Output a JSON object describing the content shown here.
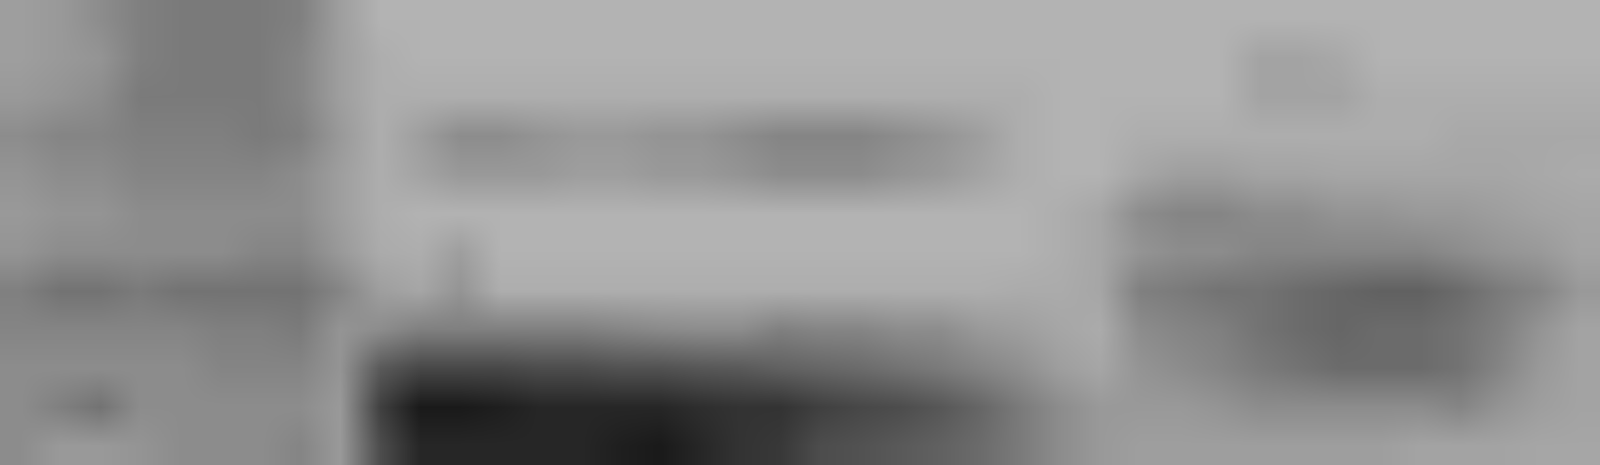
{
  "chart_data": {
    "type": "heatmap",
    "tick_labels": false,
    "zlim": [
      0,
      100
    ],
    "cells": [
      [
        45,
        40,
        40,
        42,
        45,
        45,
        45,
        48,
        40,
        70,
        85,
        85,
        85,
        85,
        85,
        88,
        90,
        85,
        80,
        78,
        70,
        68,
        65,
        62,
        58,
        52,
        45,
        40,
        38,
        38,
        38,
        38,
        38,
        38,
        38,
        36,
        36,
        36,
        35,
        35
      ],
      [
        45,
        50,
        55,
        45,
        45,
        45,
        45,
        45,
        40,
        75,
        90,
        90,
        88,
        85,
        85,
        85,
        85,
        82,
        80,
        80,
        75,
        72,
        70,
        66,
        60,
        52,
        45,
        40,
        40,
        40,
        42,
        45,
        45,
        45,
        45,
        45,
        48,
        42,
        38,
        36
      ],
      [
        45,
        45,
        45,
        45,
        45,
        48,
        48,
        48,
        42,
        65,
        72,
        72,
        72,
        70,
        70,
        68,
        68,
        66,
        65,
        62,
        60,
        58,
        55,
        52,
        48,
        44,
        38,
        35,
        42,
        45,
        48,
        52,
        55,
        58,
        58,
        58,
        55,
        48,
        40,
        36
      ],
      [
        48,
        48,
        48,
        48,
        48,
        50,
        50,
        52,
        42,
        45,
        50,
        50,
        50,
        50,
        50,
        48,
        46,
        45,
        45,
        50,
        48,
        48,
        45,
        45,
        40,
        38,
        35,
        33,
        45,
        48,
        50,
        55,
        58,
        60,
        58,
        58,
        55,
        50,
        42,
        36
      ],
      [
        50,
        55,
        55,
        52,
        55,
        55,
        55,
        55,
        48,
        38,
        35,
        42,
        32,
        32,
        32,
        32,
        32,
        32,
        32,
        32,
        32,
        32,
        32,
        32,
        32,
        33,
        33,
        35,
        50,
        52,
        55,
        55,
        58,
        60,
        62,
        62,
        58,
        52,
        48,
        40
      ],
      [
        42,
        45,
        45,
        45,
        45,
        45,
        48,
        48,
        40,
        33,
        32,
        38,
        30,
        30,
        30,
        30,
        30,
        30,
        30,
        30,
        30,
        30,
        30,
        30,
        30,
        30,
        32,
        35,
        42,
        45,
        45,
        48,
        48,
        48,
        48,
        48,
        45,
        42,
        40,
        36
      ],
      [
        40,
        42,
        42,
        45,
        45,
        45,
        45,
        45,
        38,
        32,
        30,
        30,
        30,
        30,
        30,
        30,
        30,
        30,
        30,
        30,
        30,
        30,
        30,
        30,
        30,
        30,
        32,
        35,
        45,
        48,
        48,
        45,
        45,
        42,
        42,
        40,
        40,
        38,
        36,
        35
      ],
      [
        42,
        45,
        45,
        48,
        48,
        48,
        48,
        45,
        38,
        32,
        36,
        40,
        40,
        40,
        38,
        38,
        40,
        40,
        42,
        45,
        45,
        45,
        42,
        40,
        36,
        32,
        30,
        30,
        35,
        38,
        38,
        36,
        36,
        35,
        35,
        35,
        35,
        35,
        34,
        33
      ],
      [
        45,
        48,
        48,
        50,
        50,
        50,
        52,
        50,
        40,
        32,
        38,
        45,
        45,
        42,
        40,
        40,
        42,
        42,
        45,
        48,
        48,
        48,
        45,
        42,
        38,
        32,
        30,
        30,
        32,
        32,
        32,
        32,
        32,
        32,
        32,
        32,
        34,
        34,
        34,
        34
      ],
      [
        40,
        42,
        45,
        52,
        52,
        52,
        52,
        48,
        38,
        32,
        32,
        32,
        32,
        32,
        32,
        32,
        32,
        32,
        32,
        32,
        32,
        32,
        32,
        32,
        32,
        32,
        30,
        30,
        30,
        30,
        30,
        36,
        36,
        36,
        32,
        32,
        32,
        32,
        32,
        32
      ],
      [
        38,
        40,
        42,
        50,
        52,
        52,
        52,
        48,
        38,
        32,
        30,
        30,
        30,
        30,
        30,
        30,
        30,
        30,
        30,
        30,
        30,
        30,
        30,
        30,
        30,
        30,
        30,
        30,
        30,
        30,
        30,
        36,
        36,
        34,
        30,
        30,
        30,
        30,
        30,
        30
      ],
      [
        38,
        40,
        45,
        50,
        52,
        52,
        52,
        50,
        38,
        30,
        30,
        30,
        30,
        30,
        30,
        30,
        30,
        30,
        30,
        30,
        30,
        30,
        30,
        30,
        30,
        30,
        30,
        30,
        30,
        30,
        30,
        30,
        30,
        30,
        30,
        30,
        30,
        30,
        30,
        30
      ]
    ]
  }
}
